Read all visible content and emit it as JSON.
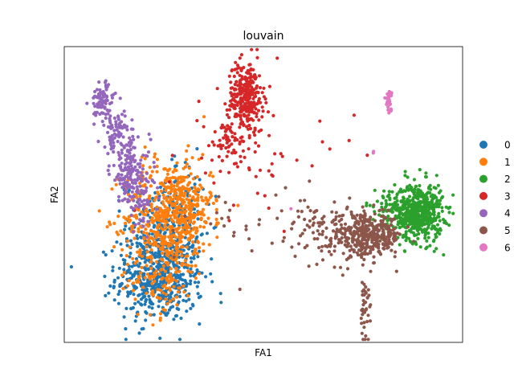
{
  "chart_data": {
    "type": "scatter",
    "title": "louvain",
    "xlabel": "FA1",
    "ylabel": "FA2",
    "grid": false,
    "legend_position": "right",
    "xlim": [
      0,
      100
    ],
    "ylim": [
      0,
      100
    ],
    "series": [
      {
        "name": "0",
        "color": "#1f77b4",
        "clusters": [
          {
            "cx": 24,
            "cy": 22,
            "sx": 5.5,
            "sy": 7.5,
            "n": 520
          },
          {
            "cx": 24.5,
            "cy": 40,
            "sx": 4.5,
            "sy": 7.0,
            "n": 180
          },
          {
            "cx": 30,
            "cy": 48,
            "sx": 4.5,
            "sy": 8.0,
            "n": 40
          }
        ]
      },
      {
        "name": "1",
        "color": "#ff7f0e",
        "clusters": [
          {
            "cx": 26,
            "cy": 42,
            "sx": 5.5,
            "sy": 10.0,
            "n": 520
          },
          {
            "cx": 31.5,
            "cy": 48,
            "sx": 3.0,
            "sy": 6.0,
            "n": 110
          },
          {
            "cx": 24,
            "cy": 20,
            "sx": 4.0,
            "sy": 6.0,
            "n": 90
          }
        ]
      },
      {
        "name": "2",
        "color": "#2ca02c",
        "clusters": [
          {
            "cx": 89,
            "cy": 44,
            "sx": 3.0,
            "sy": 5.0,
            "n": 520
          },
          {
            "cx": 82.5,
            "cy": 45,
            "sx": 3.5,
            "sy": 3.5,
            "n": 90
          }
        ]
      },
      {
        "name": "3",
        "color": "#d62728",
        "clusters": [
          {
            "cx": 45.5,
            "cy": 83,
            "sx": 2.2,
            "sy": 6.0,
            "n": 300
          },
          {
            "cx": 42,
            "cy": 67,
            "sx": 4.0,
            "sy": 5.0,
            "n": 70
          },
          {
            "cx": 51,
            "cy": 60,
            "sx": 11.0,
            "sy": 9.0,
            "n": 35
          }
        ]
      },
      {
        "name": "4",
        "color": "#9467bd",
        "clusters": [
          {
            "cx": 9.5,
            "cy": 82,
            "sx": 1.5,
            "sy": 3.0,
            "n": 80
          },
          {
            "cx": 13,
            "cy": 71,
            "sx": 2.0,
            "sy": 3.5,
            "n": 80
          },
          {
            "cx": 16.5,
            "cy": 58,
            "sx": 2.5,
            "sy": 5.5,
            "n": 150
          },
          {
            "cx": 19,
            "cy": 48,
            "sx": 2.0,
            "sy": 4.0,
            "n": 60
          }
        ]
      },
      {
        "name": "5",
        "color": "#8c564b",
        "clusters": [
          {
            "cx": 76,
            "cy": 36,
            "sx": 4.5,
            "sy": 3.5,
            "n": 380
          },
          {
            "cx": 66,
            "cy": 38,
            "sx": 5.0,
            "sy": 5.5,
            "n": 80
          },
          {
            "cx": 75.5,
            "cy": 12,
            "sx": 0.8,
            "sy": 6.0,
            "n": 40
          },
          {
            "cx": 47,
            "cy": 40,
            "sx": 8.0,
            "sy": 7.0,
            "n": 30
          }
        ]
      },
      {
        "name": "6",
        "color": "#e377c2",
        "clusters": [
          {
            "cx": 81.5,
            "cy": 82,
            "sx": 0.4,
            "sy": 1.8,
            "n": 30
          },
          {
            "cx": 78,
            "cy": 66,
            "sx": 0.5,
            "sy": 3.0,
            "n": 2
          },
          {
            "cx": 57,
            "cy": 46,
            "sx": 0.4,
            "sy": 0.4,
            "n": 1
          }
        ]
      }
    ]
  }
}
